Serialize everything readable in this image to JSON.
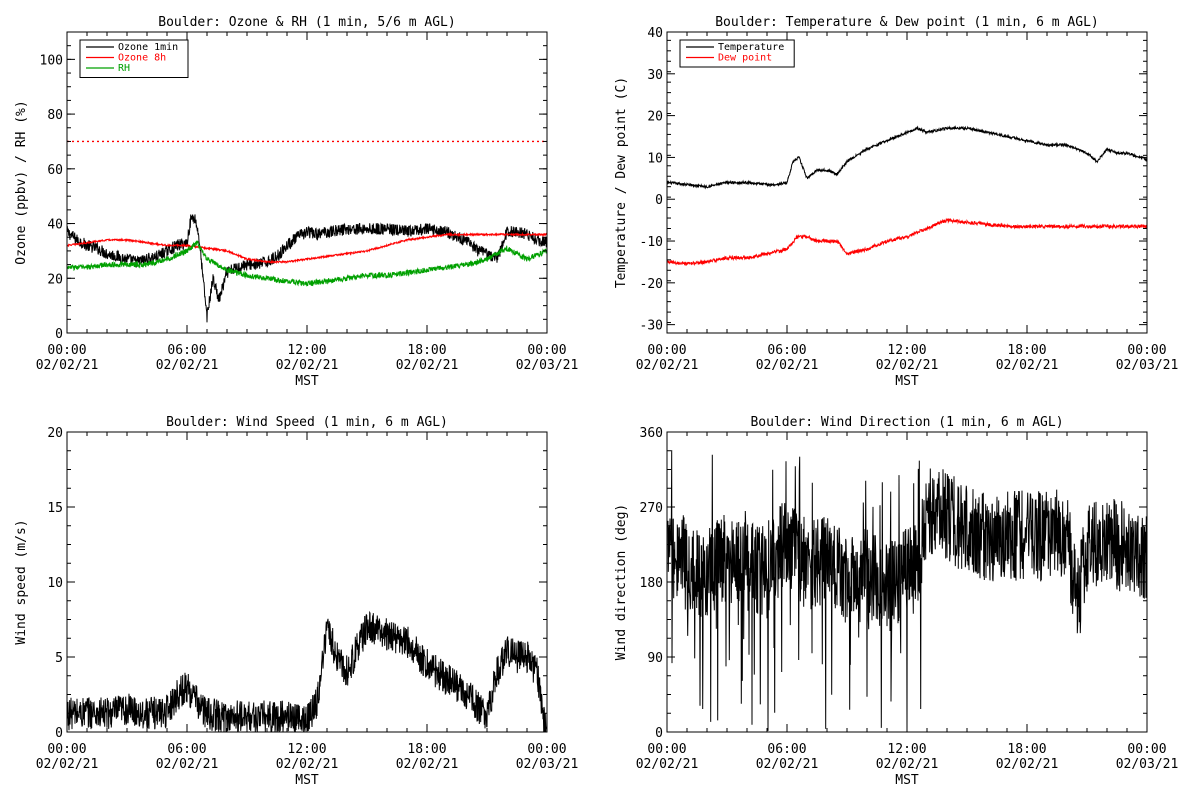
{
  "chart_data": [
    {
      "id": "ozone",
      "type": "line",
      "title": "Boulder: Ozone & RH (1 min, 5/6 m AGL)",
      "ylabel": "Ozone (ppbv) / RH (%)",
      "xlabel": "MST",
      "xlim": [
        0,
        24
      ],
      "ylim": [
        0,
        110
      ],
      "x_ticks": [
        {
          "value": 0,
          "time": "00:00",
          "date": "02/02/21"
        },
        {
          "value": 6,
          "time": "06:00",
          "date": "02/02/21"
        },
        {
          "value": 12,
          "time": "12:00",
          "date": "02/02/21"
        },
        {
          "value": 18,
          "time": "18:00",
          "date": "02/02/21"
        },
        {
          "value": 24,
          "time": "00:00",
          "date": "02/03/21"
        }
      ],
      "y_ticks": [
        0,
        20,
        40,
        60,
        80,
        100
      ],
      "legend": {
        "position": "top-left",
        "entries": [
          {
            "label": "Ozone 1min",
            "color": "#000000"
          },
          {
            "label": "Ozone 8h",
            "color": "#ff0000"
          },
          {
            "label": "RH",
            "color": "#00a000"
          }
        ]
      },
      "reference_line": {
        "y": 70,
        "style": "dotted",
        "color": "#ff0000"
      },
      "series": [
        {
          "name": "Ozone 1min",
          "color": "#000000",
          "noise": 2.2,
          "x": [
            0,
            0.5,
            1,
            1.5,
            2,
            2.5,
            3,
            3.5,
            4,
            4.5,
            5,
            5.5,
            6,
            6.2,
            6.4,
            6.6,
            6.8,
            7,
            7.3,
            7.6,
            8,
            8.5,
            9,
            9.5,
            10,
            10.5,
            11,
            11.5,
            12,
            12.5,
            13,
            14,
            15,
            16,
            17,
            18,
            19,
            19.5,
            20,
            20.5,
            21,
            21.5,
            22,
            22.5,
            23,
            23.5,
            24
          ],
          "y": [
            37,
            34,
            32,
            31,
            29,
            28,
            27,
            26,
            27,
            28,
            30,
            32,
            33,
            42,
            42,
            35,
            20,
            6,
            20,
            12,
            22,
            24,
            25,
            25,
            26,
            28,
            32,
            35,
            37,
            36,
            37,
            38,
            38,
            38,
            37,
            38,
            37,
            35,
            34,
            30,
            29,
            27,
            37,
            37,
            36,
            34,
            33
          ]
        },
        {
          "name": "Ozone 8h",
          "color": "#ff0000",
          "noise": 0.3,
          "x": [
            0,
            1,
            2,
            3,
            4,
            5,
            6,
            7,
            8,
            9,
            10,
            11,
            12,
            13,
            14,
            15,
            16,
            17,
            18,
            19,
            20,
            21,
            22,
            23,
            24
          ],
          "y": [
            32,
            33,
            34,
            34,
            33,
            32,
            32,
            31,
            30,
            27,
            26,
            26,
            27,
            28,
            29,
            30,
            32,
            34,
            35,
            36,
            36,
            36,
            36,
            36,
            36
          ]
        },
        {
          "name": "RH",
          "color": "#00a000",
          "noise": 1.0,
          "x": [
            0,
            1,
            2,
            3,
            4,
            5,
            6,
            6.5,
            7,
            8,
            9,
            10,
            11,
            12,
            13,
            14,
            15,
            16,
            17,
            18,
            19,
            20,
            21,
            22,
            23,
            24
          ],
          "y": [
            24,
            24,
            25,
            25,
            25,
            27,
            30,
            33,
            27,
            23,
            21,
            20,
            19,
            18,
            19,
            20,
            21,
            21,
            22,
            23,
            24,
            25,
            27,
            31,
            27,
            30
          ]
        }
      ]
    },
    {
      "id": "temperature",
      "type": "line",
      "title": "Boulder: Temperature & Dew point (1 min, 6 m AGL)",
      "ylabel": "Temperature / Dew point (C)",
      "xlabel": "MST",
      "xlim": [
        0,
        24
      ],
      "ylim": [
        -32,
        40
      ],
      "x_ticks": [
        {
          "value": 0,
          "time": "00:00",
          "date": "02/02/21"
        },
        {
          "value": 6,
          "time": "06:00",
          "date": "02/02/21"
        },
        {
          "value": 12,
          "time": "12:00",
          "date": "02/02/21"
        },
        {
          "value": 18,
          "time": "18:00",
          "date": "02/02/21"
        },
        {
          "value": 24,
          "time": "00:00",
          "date": "02/03/21"
        }
      ],
      "y_ticks": [
        -30,
        -20,
        -10,
        0,
        10,
        20,
        30,
        40
      ],
      "legend": {
        "position": "top-left",
        "entries": [
          {
            "label": "Temperature",
            "color": "#000000"
          },
          {
            "label": "Dew point",
            "color": "#ff0000"
          }
        ]
      },
      "series": [
        {
          "name": "Temperature",
          "color": "#000000",
          "noise": 0.3,
          "x": [
            0,
            1,
            2,
            3,
            4,
            5,
            5.5,
            6,
            6.3,
            6.6,
            7,
            7.5,
            8,
            8.5,
            9,
            10,
            11,
            12,
            12.5,
            13,
            14,
            14.5,
            15,
            16,
            17,
            18,
            19,
            20,
            21,
            21.5,
            22,
            22.5,
            23,
            24
          ],
          "y": [
            4,
            3.5,
            3,
            4,
            4,
            3.5,
            3.5,
            4,
            9,
            10,
            5,
            7,
            7,
            6,
            9,
            12,
            14,
            16,
            17,
            16,
            17,
            17,
            17,
            16,
            15,
            14,
            13,
            13,
            11,
            9,
            12,
            11,
            11,
            9.5
          ]
        },
        {
          "name": "Dew point",
          "color": "#ff0000",
          "noise": 0.4,
          "x": [
            0,
            1,
            2,
            3,
            4,
            5,
            6,
            6.5,
            7,
            7.5,
            8,
            8.5,
            9,
            10,
            11,
            12,
            13,
            14,
            15,
            16,
            17,
            18,
            19,
            20,
            21,
            22,
            23,
            24
          ],
          "y": [
            -15,
            -15.5,
            -15,
            -14,
            -14,
            -13,
            -12,
            -9,
            -9,
            -10,
            -10,
            -10,
            -13,
            -12,
            -10,
            -9,
            -7,
            -5,
            -5.5,
            -6,
            -6.5,
            -6.5,
            -6.5,
            -6.5,
            -6.5,
            -6.5,
            -6.5,
            -6.5
          ]
        }
      ]
    },
    {
      "id": "wind_speed",
      "type": "line",
      "title": "Boulder: Wind Speed (1 min, 6 m AGL)",
      "ylabel": "Wind speed (m/s)",
      "xlabel": "MST",
      "xlim": [
        0,
        24
      ],
      "ylim": [
        0,
        20
      ],
      "x_ticks": [
        {
          "value": 0,
          "time": "00:00",
          "date": "02/02/21"
        },
        {
          "value": 6,
          "time": "06:00",
          "date": "02/02/21"
        },
        {
          "value": 12,
          "time": "12:00",
          "date": "02/02/21"
        },
        {
          "value": 18,
          "time": "18:00",
          "date": "02/02/21"
        },
        {
          "value": 24,
          "time": "00:00",
          "date": "02/03/21"
        }
      ],
      "y_ticks": [
        0,
        5,
        10,
        15,
        20
      ],
      "legend": null,
      "series": [
        {
          "name": "",
          "color": "#000000",
          "noise": 1.1,
          "x": [
            0,
            1,
            2,
            3,
            4,
            5,
            5.5,
            6,
            6.5,
            7,
            8,
            9,
            10,
            11,
            12,
            12.5,
            13,
            13.5,
            14,
            15,
            16,
            17,
            18,
            19,
            20,
            21,
            21.5,
            22,
            22.5,
            23,
            23.5,
            23.8,
            24
          ],
          "y": [
            1.2,
            1.3,
            1.2,
            1.5,
            1.2,
            1.4,
            2.5,
            3,
            2,
            1.2,
            1,
            1,
            1,
            1,
            0.8,
            2,
            7,
            5,
            4,
            7,
            6.5,
            6,
            4.5,
            3.5,
            2.5,
            1,
            4,
            5.5,
            5,
            5,
            4,
            1,
            0.5
          ]
        }
      ]
    },
    {
      "id": "wind_direction",
      "type": "line",
      "title": "Boulder: Wind Direction (1 min, 6 m AGL)",
      "ylabel": "Wind direction (deg)",
      "xlabel": "MST",
      "xlim": [
        0,
        24
      ],
      "ylim": [
        0,
        360
      ],
      "x_ticks": [
        {
          "value": 0,
          "time": "00:00",
          "date": "02/02/21"
        },
        {
          "value": 6,
          "time": "06:00",
          "date": "02/02/21"
        },
        {
          "value": 12,
          "time": "12:00",
          "date": "02/02/21"
        },
        {
          "value": 18,
          "time": "18:00",
          "date": "02/02/21"
        },
        {
          "value": 24,
          "time": "00:00",
          "date": "02/03/21"
        }
      ],
      "y_ticks": [
        0,
        90,
        180,
        270,
        360
      ],
      "legend": null,
      "series": [
        {
          "name": "",
          "color": "#000000",
          "noise": 55,
          "x": [
            0,
            1,
            2,
            3,
            4,
            5,
            6,
            7,
            8,
            9,
            10,
            11,
            12,
            12.5,
            13,
            14,
            15,
            16,
            17,
            18,
            19,
            20,
            20.5,
            21,
            22,
            23,
            24
          ],
          "y": [
            220,
            200,
            190,
            210,
            200,
            190,
            230,
            200,
            210,
            180,
            190,
            170,
            190,
            200,
            270,
            260,
            240,
            235,
            235,
            235,
            235,
            240,
            150,
            220,
            230,
            220,
            210
          ]
        }
      ]
    }
  ]
}
